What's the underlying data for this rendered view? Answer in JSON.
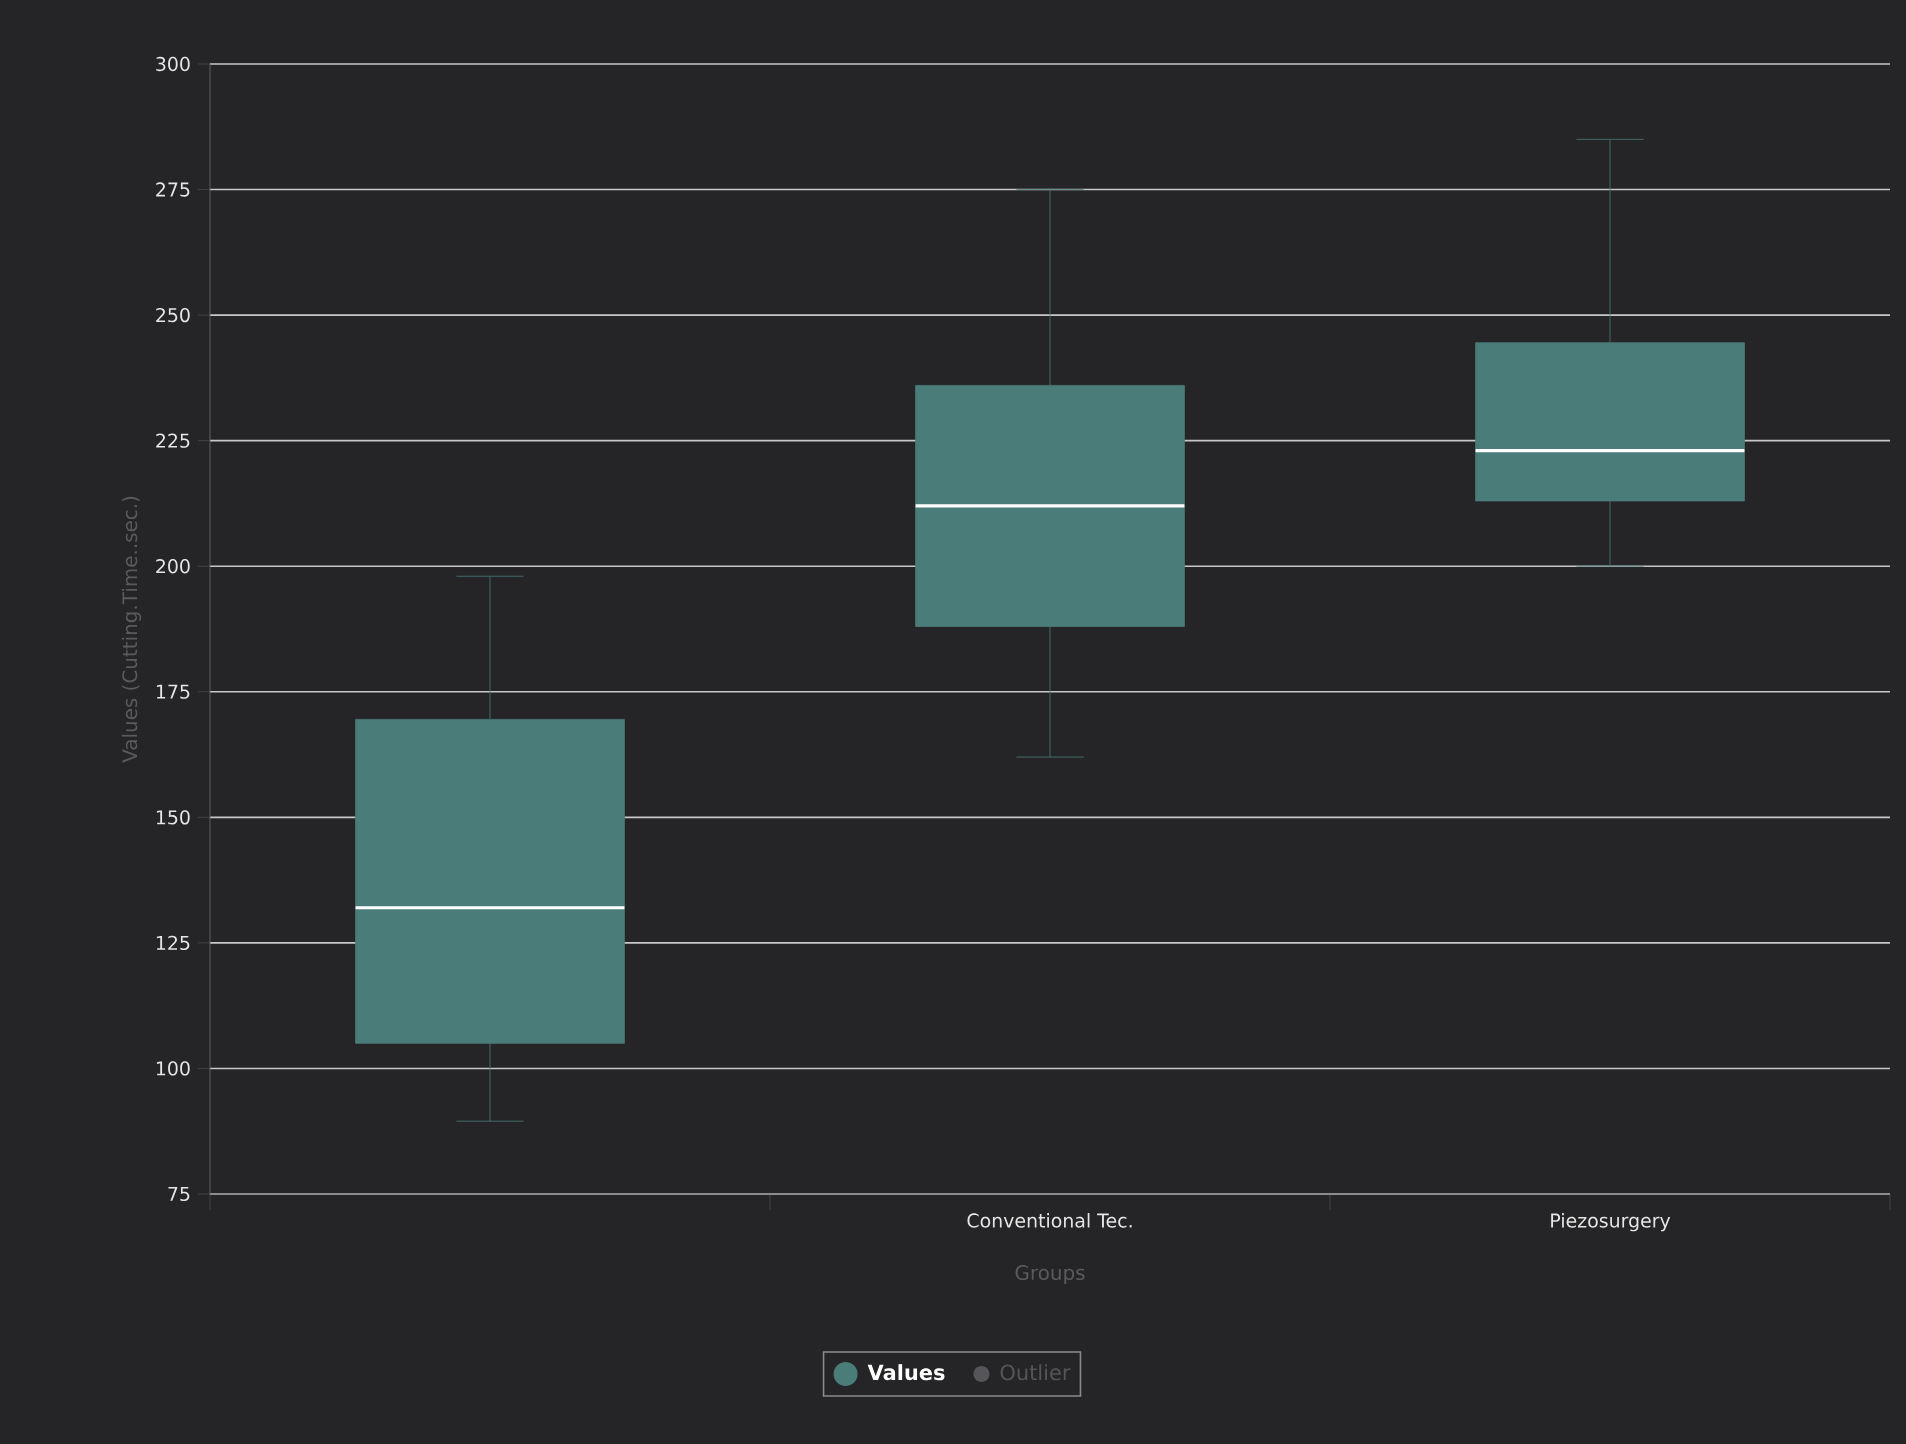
{
  "chart_data": {
    "type": "box",
    "xlabel": "Groups",
    "ylabel": "Values (Cutting.Time..sec.)",
    "categories": [
      null,
      "Conventional Tec.",
      "Piezosurgery"
    ],
    "ylim": [
      75,
      300
    ],
    "yticks": [
      75,
      100,
      125,
      150,
      175,
      200,
      225,
      250,
      275,
      300
    ],
    "grid": "y",
    "legend": "bottom",
    "series": [
      {
        "name": "Values",
        "color": "#4a7c7a",
        "boxes": [
          {
            "low": 89.5,
            "q1": 105,
            "median": 132,
            "q3": 169.5,
            "high": 198
          },
          {
            "low": 162,
            "q1": 188,
            "median": 212,
            "q3": 236,
            "high": 275
          },
          {
            "low": 200,
            "q1": 213,
            "median": 223,
            "q3": 244.5,
            "high": 285
          }
        ]
      },
      {
        "name": "Outlier",
        "type": "scatter",
        "color": "#56565a",
        "values": [
          null,
          null,
          null
        ]
      }
    ]
  }
}
